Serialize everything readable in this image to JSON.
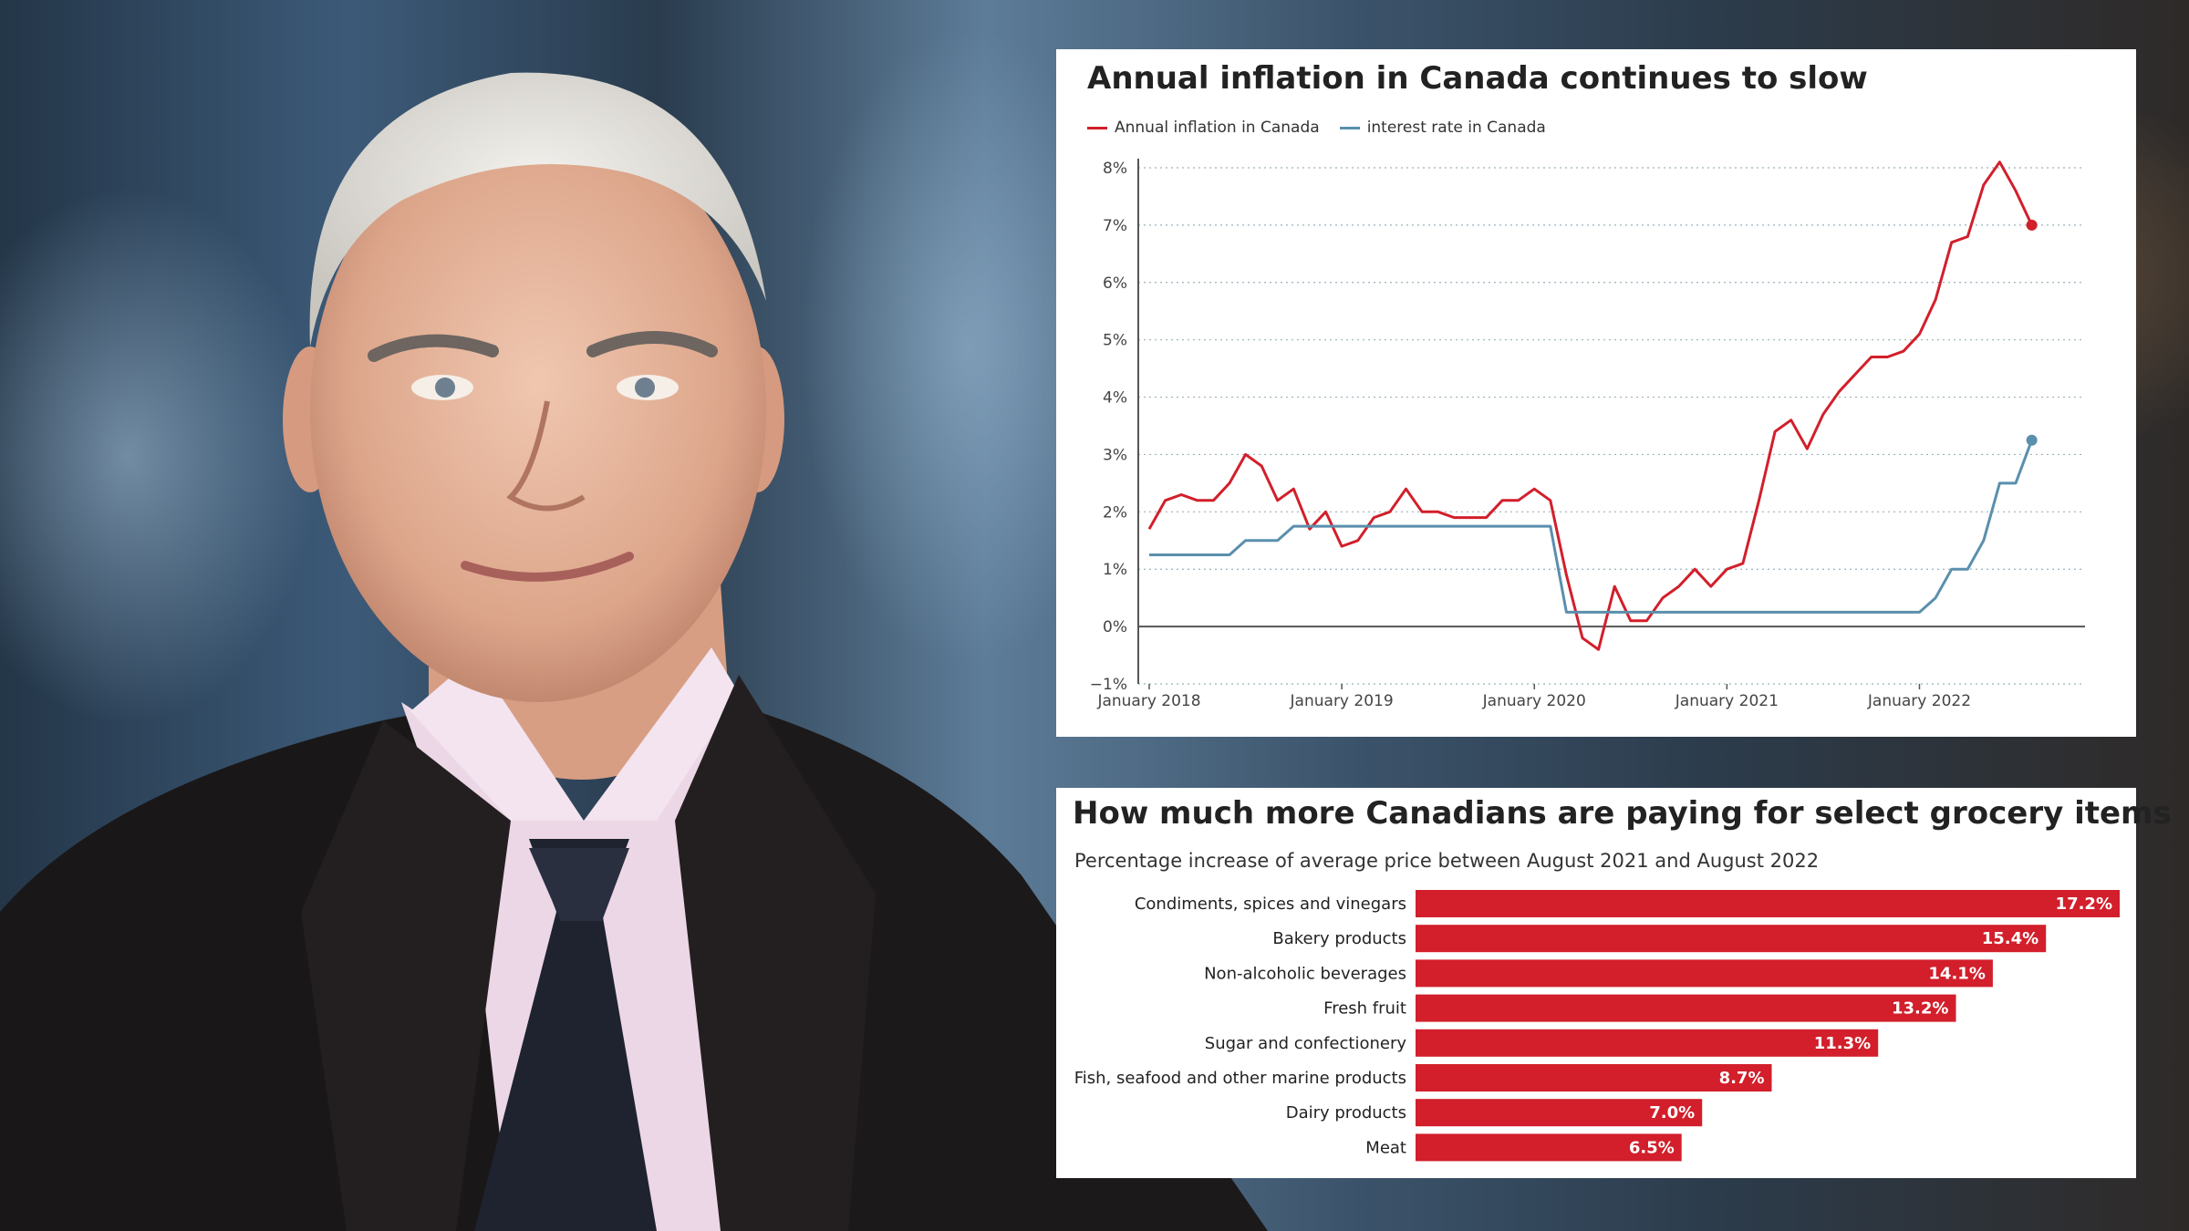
{
  "chart_data": [
    {
      "type": "line",
      "title": "Annual inflation in Canada continues to slow",
      "subtitle": "",
      "xlabel": "",
      "ylabel": "",
      "x_ticks": [
        "January 2018",
        "January 2019",
        "January 2020",
        "January 2021",
        "January 2022"
      ],
      "y_ticks": [
        "−1%",
        "0%",
        "1%",
        "2%",
        "3%",
        "4%",
        "5%",
        "6%",
        "7%",
        "8%"
      ],
      "ylim": [
        -1,
        8
      ],
      "grid": true,
      "legend": "top-left",
      "x": [
        "2018-01",
        "2018-02",
        "2018-03",
        "2018-04",
        "2018-05",
        "2018-06",
        "2018-07",
        "2018-08",
        "2018-09",
        "2018-10",
        "2018-11",
        "2018-12",
        "2019-01",
        "2019-02",
        "2019-03",
        "2019-04",
        "2019-05",
        "2019-06",
        "2019-07",
        "2019-08",
        "2019-09",
        "2019-10",
        "2019-11",
        "2019-12",
        "2020-01",
        "2020-02",
        "2020-03",
        "2020-04",
        "2020-05",
        "2020-06",
        "2020-07",
        "2020-08",
        "2020-09",
        "2020-10",
        "2020-11",
        "2020-12",
        "2021-01",
        "2021-02",
        "2021-03",
        "2021-04",
        "2021-05",
        "2021-06",
        "2021-07",
        "2021-08",
        "2021-09",
        "2021-10",
        "2021-11",
        "2021-12",
        "2022-01",
        "2022-02",
        "2022-03",
        "2022-04",
        "2022-05",
        "2022-06",
        "2022-07",
        "2022-08"
      ],
      "series": [
        {
          "name": "Annual inflation in Canada",
          "color": "#d21f2b",
          "values": [
            1.7,
            2.2,
            2.3,
            2.2,
            2.2,
            2.5,
            3.0,
            2.8,
            2.2,
            2.4,
            1.7,
            2.0,
            1.4,
            1.5,
            1.9,
            2.0,
            2.4,
            2.0,
            2.0,
            1.9,
            1.9,
            1.9,
            2.2,
            2.2,
            2.4,
            2.2,
            0.9,
            -0.2,
            -0.4,
            0.7,
            0.1,
            0.1,
            0.5,
            0.7,
            1.0,
            0.7,
            1.0,
            1.1,
            2.2,
            3.4,
            3.6,
            3.1,
            3.7,
            4.1,
            4.4,
            4.7,
            4.7,
            4.8,
            5.1,
            5.7,
            6.7,
            6.8,
            7.7,
            8.1,
            7.6,
            7.0
          ]
        },
        {
          "name": "interest rate in Canada",
          "color": "#5a8fad",
          "values": [
            1.25,
            1.25,
            1.25,
            1.25,
            1.25,
            1.25,
            1.5,
            1.5,
            1.5,
            1.75,
            1.75,
            1.75,
            1.75,
            1.75,
            1.75,
            1.75,
            1.75,
            1.75,
            1.75,
            1.75,
            1.75,
            1.75,
            1.75,
            1.75,
            1.75,
            1.75,
            0.25,
            0.25,
            0.25,
            0.25,
            0.25,
            0.25,
            0.25,
            0.25,
            0.25,
            0.25,
            0.25,
            0.25,
            0.25,
            0.25,
            0.25,
            0.25,
            0.25,
            0.25,
            0.25,
            0.25,
            0.25,
            0.25,
            0.25,
            0.5,
            1.0,
            1.0,
            1.5,
            2.5,
            2.5,
            3.25
          ]
        }
      ]
    },
    {
      "type": "bar",
      "orientation": "horizontal",
      "title": "How much more Canadians are paying for select grocery items",
      "subtitle": "Percentage increase of average price between August 2021 and August 2022",
      "xlabel": "",
      "ylabel": "",
      "color": "#d21f2b",
      "categories": [
        "Condiments, spices and vinegars",
        "Bakery products",
        "Non-alcoholic beverages",
        "Fresh fruit",
        "Sugar and confectionery",
        "Fish, seafood and other marine products",
        "Dairy products",
        "Meat"
      ],
      "values": [
        17.2,
        15.4,
        14.1,
        13.2,
        11.3,
        8.7,
        7.0,
        6.5
      ],
      "value_labels": [
        "17.2%",
        "15.4%",
        "14.1%",
        "13.2%",
        "11.3%",
        "8.7%",
        "7.0%",
        "6.5%"
      ],
      "xlim": [
        0,
        17.2
      ]
    }
  ]
}
